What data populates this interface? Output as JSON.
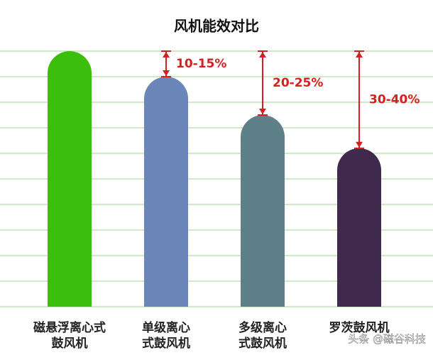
{
  "chart_data": {
    "type": "bar",
    "title": "风机能效对比",
    "categories": [
      [
        "磁悬浮离心式",
        "鼓风机"
      ],
      [
        "单级离心",
        "式鼓风机"
      ],
      [
        "多级离心",
        "式鼓风机"
      ],
      [
        "罗茨鼓风机"
      ]
    ],
    "values": [
      100,
      90,
      75,
      62
    ],
    "colors": [
      "#3cbf0c",
      "#6b86b8",
      "#5e8088",
      "#3f2a4d"
    ],
    "annotations": [
      null,
      "10-15%",
      "20-25%",
      "30-40%"
    ],
    "ylim": [
      0,
      100
    ],
    "yticks": [
      0,
      10,
      20,
      30,
      40,
      50,
      60,
      70,
      80,
      90,
      100
    ],
    "grid": true,
    "watermark": "头条 @磁谷科技"
  }
}
